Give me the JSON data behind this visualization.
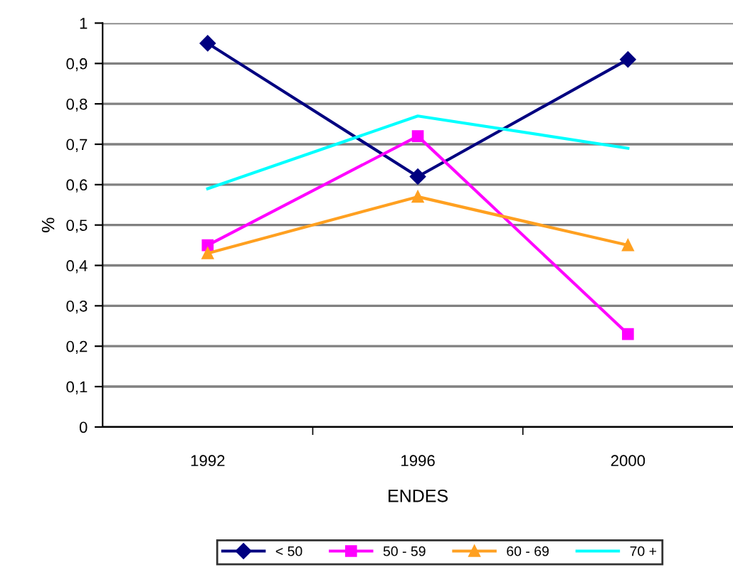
{
  "chart_data": {
    "type": "line",
    "xlabel": "ENDES",
    "ylabel": "%",
    "categories": [
      "1992",
      "1996",
      "2000"
    ],
    "series": [
      {
        "name": "< 50",
        "color": "#000080",
        "marker": "diamond",
        "values": [
          0.95,
          0.62,
          0.91
        ]
      },
      {
        "name": "50 - 59",
        "color": "#ff00ff",
        "marker": "square",
        "values": [
          0.45,
          0.72,
          0.23
        ]
      },
      {
        "name": "60 - 69",
        "color": "#ffa020",
        "marker": "triangle",
        "values": [
          0.43,
          0.57,
          0.45
        ]
      },
      {
        "name": "70 +",
        "color": "#00ffff",
        "marker": "none",
        "values": [
          0.59,
          0.77,
          0.69
        ]
      }
    ],
    "ylim": [
      0,
      1
    ],
    "yticks": [
      0,
      {
        "value": 0.1,
        "label": "0,1"
      },
      {
        "value": 0.2,
        "label": "0,2"
      },
      {
        "value": 0.3,
        "label": "0,3"
      },
      {
        "value": 0.4,
        "label": "0,4"
      },
      {
        "value": 0.5,
        "label": "0,5"
      },
      {
        "value": 0.6,
        "label": "0,6"
      },
      {
        "value": 0.7,
        "label": "0,7"
      },
      {
        "value": 0.8,
        "label": "0,8"
      },
      {
        "value": 0.9,
        "label": "0,9"
      },
      1
    ],
    "grid": "y",
    "legend": "bottom"
  }
}
